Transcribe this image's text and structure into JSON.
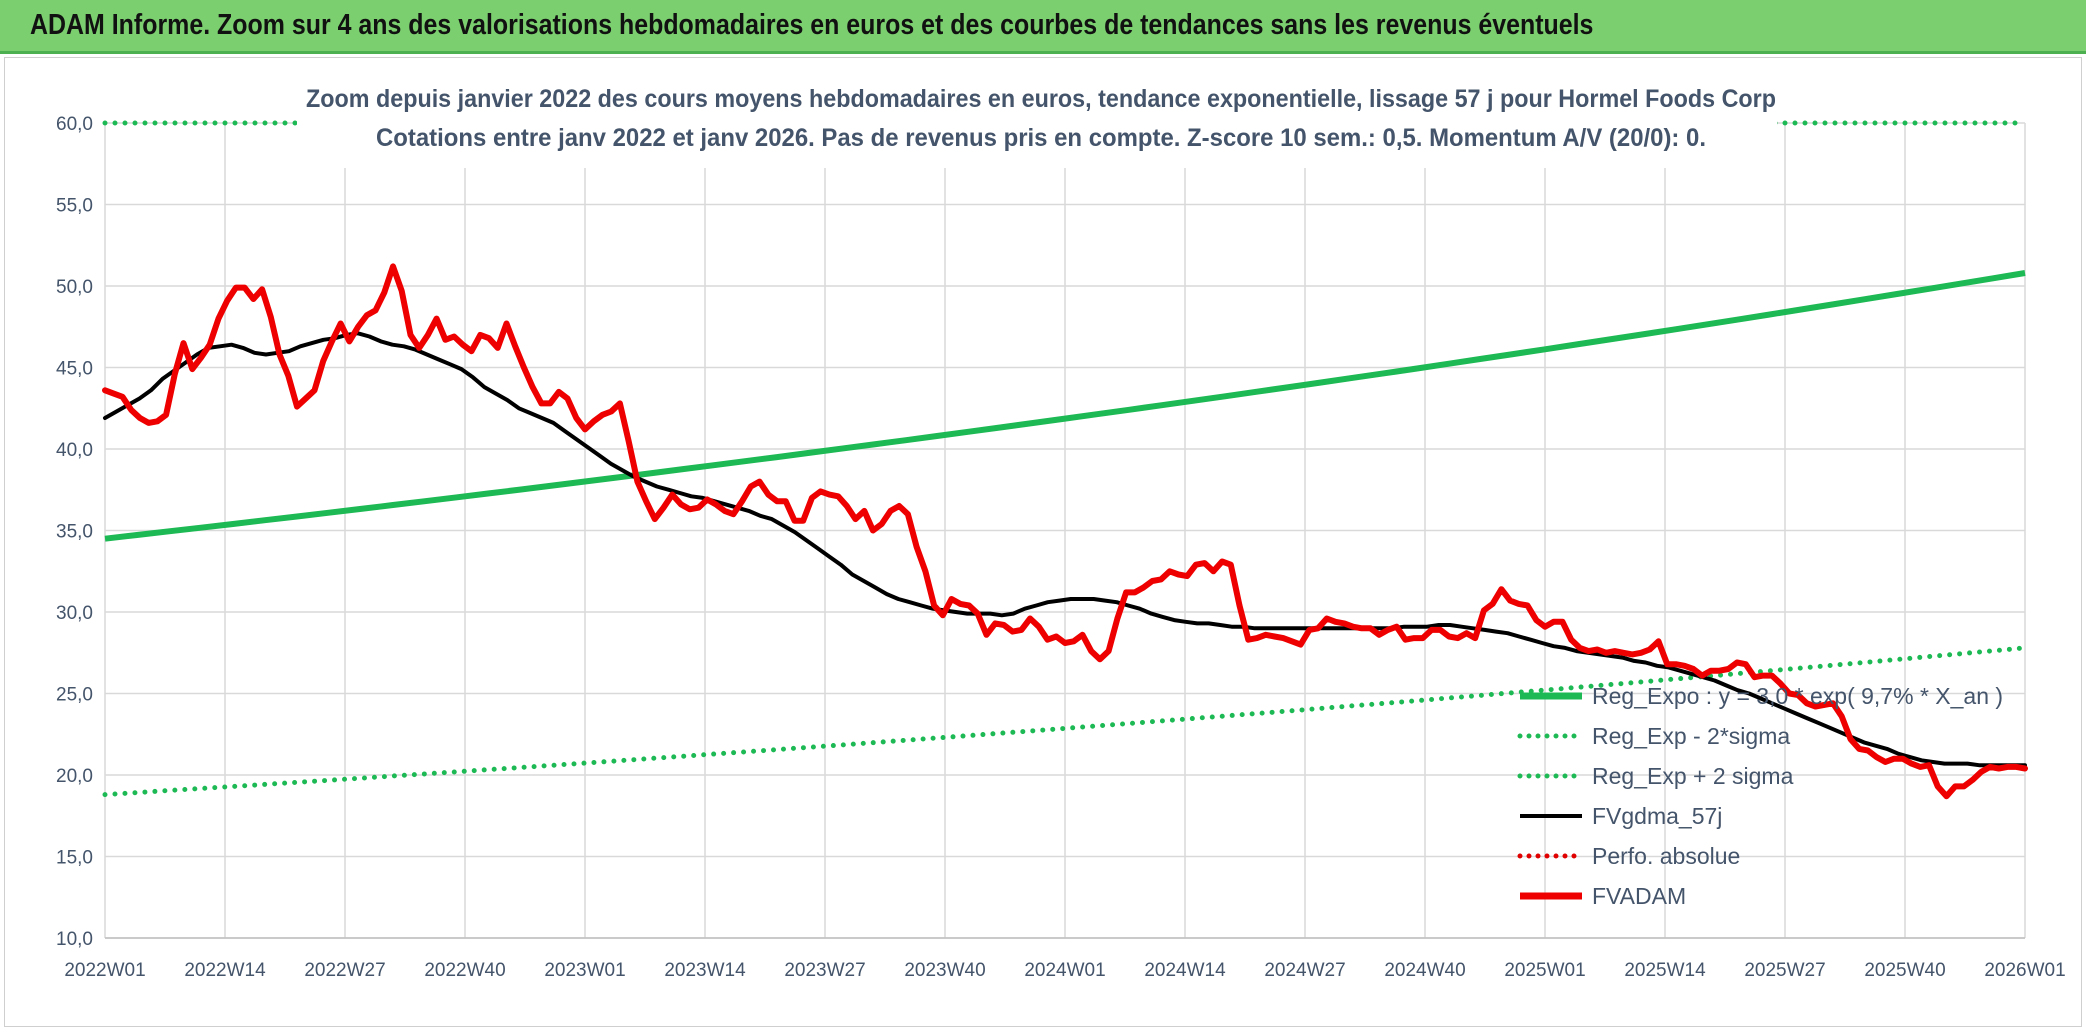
{
  "header": {
    "title": "ADAM Informe. Zoom sur 4 ans des valorisations hebdomadaires en euros et des courbes de tendances sans les revenus éventuels"
  },
  "chart_data": {
    "type": "line",
    "title": "Zoom depuis janvier 2022 des cours moyens hebdomadaires en euros, tendance exponentielle, lissage 57 j pour Hormel Foods Corp",
    "subtitle": "Cotations entre janv 2022 et janv 2026. Pas de revenus pris en compte. Z-score 10 sem.: 0,5. Momentum A/V (20/0): 0.",
    "ylim": [
      10,
      60
    ],
    "yticks": [
      "10,0",
      "15,0",
      "20,0",
      "25,0",
      "30,0",
      "35,0",
      "40,0",
      "45,0",
      "50,0",
      "55,0",
      "60,0"
    ],
    "xticks": [
      "2022W01",
      "2022W14",
      "2022W27",
      "2022W40",
      "2023W01",
      "2023W14",
      "2023W27",
      "2023W40",
      "2024W01",
      "2024W14",
      "2024W27",
      "2024W40",
      "2025W01",
      "2025W14",
      "2025W27",
      "2025W40",
      "2026W01"
    ],
    "grid": true,
    "legend_position": "bottom-right",
    "series": [
      {
        "name": "Reg_Expo : y = 3,0 * exp( 9,7% *  X_an )",
        "color": "#1db954",
        "style": "solid",
        "start": 34.5,
        "end": 50.8
      },
      {
        "name": "Reg_Exp - 2*sigma",
        "color": "#1db954",
        "style": "dotted",
        "start": 18.8,
        "end": 27.8
      },
      {
        "name": "Reg_Exp + 2 sigma",
        "color": "#1db954",
        "style": "dotted",
        "start": 60.0,
        "end": 60.0
      },
      {
        "name": "FVgdma_57j",
        "color": "#000000",
        "style": "solid",
        "values": [
          41.9,
          42.3,
          42.7,
          43.1,
          43.6,
          44.3,
          44.8,
          45.3,
          45.8,
          46.2,
          46.3,
          46.4,
          46.2,
          45.9,
          45.8,
          45.9,
          46.0,
          46.3,
          46.5,
          46.7,
          46.8,
          47.0,
          47.1,
          46.9,
          46.6,
          46.4,
          46.3,
          46.1,
          45.8,
          45.5,
          45.2,
          44.9,
          44.4,
          43.8,
          43.4,
          43.0,
          42.5,
          42.2,
          41.9,
          41.6,
          41.1,
          40.6,
          40.1,
          39.6,
          39.1,
          38.7,
          38.3,
          38.0,
          37.7,
          37.5,
          37.3,
          37.1,
          37.0,
          36.8,
          36.6,
          36.4,
          36.2,
          35.9,
          35.7,
          35.3,
          34.9,
          34.4,
          33.9,
          33.4,
          32.9,
          32.3,
          31.9,
          31.5,
          31.1,
          30.8,
          30.6,
          30.4,
          30.2,
          30.1,
          30.0,
          29.9,
          29.9,
          29.9,
          29.8,
          29.9,
          30.2,
          30.4,
          30.6,
          30.7,
          30.8,
          30.8,
          30.8,
          30.7,
          30.6,
          30.4,
          30.2,
          29.9,
          29.7,
          29.5,
          29.4,
          29.3,
          29.3,
          29.2,
          29.1,
          29.1,
          29.0,
          29.0,
          29.0,
          29.0,
          29.0,
          29.0,
          29.0,
          29.0,
          29.0,
          29.0,
          29.0,
          29.0,
          29.0,
          29.1,
          29.1,
          29.1,
          29.2,
          29.2,
          29.1,
          29.0,
          28.9,
          28.8,
          28.7,
          28.5,
          28.3,
          28.1,
          27.9,
          27.8,
          27.6,
          27.5,
          27.4,
          27.3,
          27.2,
          27.0,
          26.9,
          26.7,
          26.6,
          26.4,
          26.2,
          26.0,
          25.8,
          25.5,
          25.2,
          25.0,
          24.7,
          24.4,
          24.1,
          23.8,
          23.5,
          23.2,
          22.9,
          22.6,
          22.3,
          22.0,
          21.8,
          21.6,
          21.3,
          21.1,
          20.9,
          20.8,
          20.7,
          20.7,
          20.7,
          20.6,
          20.6,
          20.6,
          20.6,
          20.6
        ]
      },
      {
        "name": "Perfo. absolue",
        "color": "#e00000",
        "style": "dotted"
      },
      {
        "name": "FVADAM",
        "color": "#ee0000",
        "style": "solid",
        "values": [
          43.6,
          43.4,
          43.2,
          42.4,
          41.9,
          41.6,
          41.7,
          42.1,
          44.6,
          46.5,
          44.9,
          45.6,
          46.4,
          48.0,
          49.1,
          49.9,
          49.9,
          49.2,
          49.8,
          48.1,
          45.8,
          44.5,
          42.6,
          43.1,
          43.6,
          45.4,
          46.6,
          47.7,
          46.6,
          47.5,
          48.2,
          48.5,
          49.6,
          51.2,
          49.7,
          47.0,
          46.2,
          47.0,
          48.0,
          46.7,
          46.9,
          46.4,
          46.0,
          47.0,
          46.8,
          46.2,
          47.7,
          46.3,
          45.0,
          43.8,
          42.8,
          42.8,
          43.5,
          43.1,
          41.9,
          41.2,
          41.7,
          42.1,
          42.3,
          42.8,
          40.5,
          38.0,
          36.8,
          35.7,
          36.4,
          37.2,
          36.6,
          36.3,
          36.4,
          36.9,
          36.6,
          36.2,
          36.0,
          36.8,
          37.7,
          38.0,
          37.2,
          36.8,
          36.8,
          35.6,
          35.6,
          37.0,
          37.4,
          37.2,
          37.1,
          36.5,
          35.7,
          36.2,
          35.0,
          35.4,
          36.2,
          36.5,
          36.0,
          34.0,
          32.5,
          30.4,
          29.8,
          30.8,
          30.5,
          30.4,
          29.9,
          28.6,
          29.3,
          29.2,
          28.8,
          28.9,
          29.6,
          29.1,
          28.3,
          28.5,
          28.1,
          28.2,
          28.6,
          27.6,
          27.1,
          27.6,
          29.6,
          31.2,
          31.2,
          31.5,
          31.9,
          32.0,
          32.5,
          32.3,
          32.2,
          32.9,
          33.0,
          32.5,
          33.1,
          32.9,
          30.4,
          28.3,
          28.4,
          28.6,
          28.5,
          28.4,
          28.2,
          28.0,
          28.9,
          29.0,
          29.6,
          29.4,
          29.3,
          29.1,
          29.0,
          29.0,
          28.6,
          28.9,
          29.1,
          28.3,
          28.4,
          28.4,
          28.9,
          28.9,
          28.5,
          28.4,
          28.7,
          28.4,
          30.1,
          30.5,
          31.4,
          30.7,
          30.5,
          30.4,
          29.5,
          29.1,
          29.4,
          29.4,
          28.3,
          27.8,
          27.6,
          27.7,
          27.5,
          27.6,
          27.5,
          27.4,
          27.5,
          27.7,
          28.2,
          26.8,
          26.8,
          26.7,
          26.5,
          26.1,
          26.4,
          26.4,
          26.5,
          26.9,
          26.8,
          26.0,
          26.1,
          26.1,
          25.6,
          25.0,
          24.9,
          24.4,
          24.2,
          24.3,
          24.4,
          23.6,
          22.2,
          21.6,
          21.5,
          21.1,
          20.8,
          21.0,
          21.0,
          20.7,
          20.5,
          20.6,
          19.3,
          18.7,
          19.3,
          19.3,
          19.7,
          20.2,
          20.5,
          20.4,
          20.5,
          20.5,
          20.4
        ]
      }
    ]
  }
}
